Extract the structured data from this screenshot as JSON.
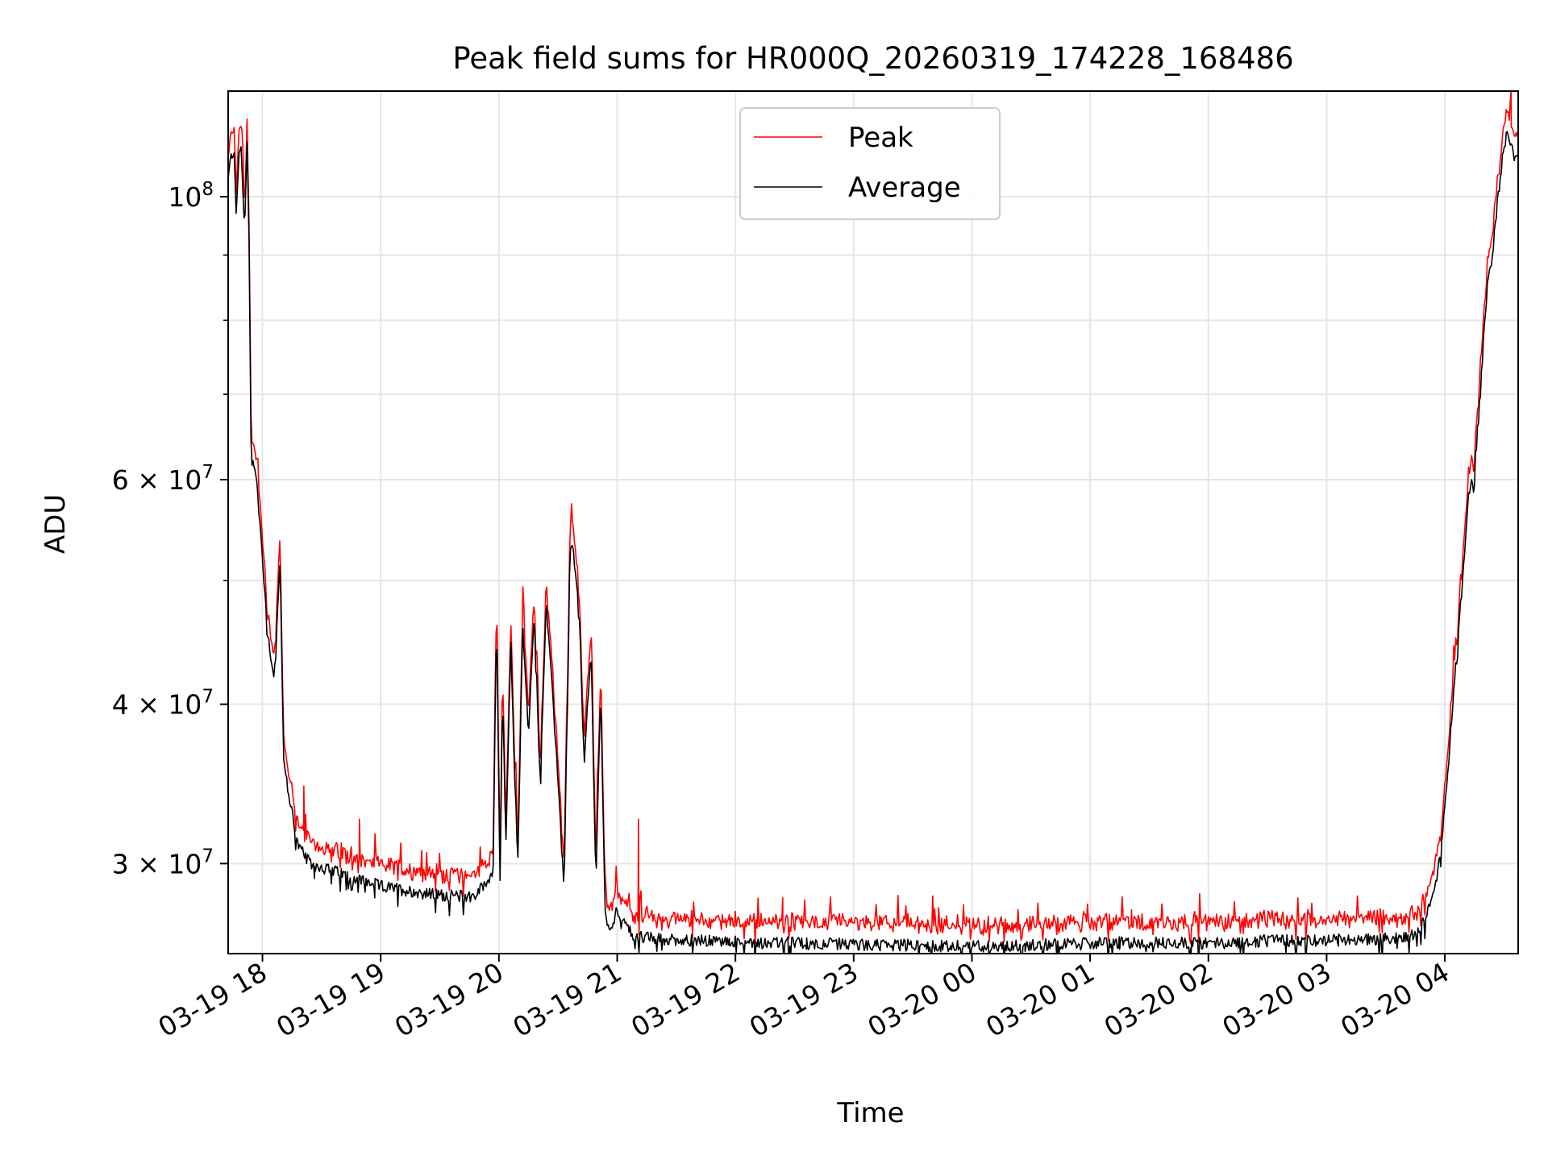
{
  "chart_data": {
    "type": "line",
    "title": "Peak field sums for HR000Q_20260319_174228_168486",
    "xlabel": "Time",
    "ylabel": "ADU",
    "yscale": "log",
    "ylim": [
      25500000,
      121000000
    ],
    "xlim_hours": [
      17.71,
      28.62
    ],
    "grid": true,
    "legend_location": "upper center",
    "x_ticks": [
      {
        "hour": 18,
        "label": "03-19 18"
      },
      {
        "hour": 19,
        "label": "03-19 19"
      },
      {
        "hour": 20,
        "label": "03-19 20"
      },
      {
        "hour": 21,
        "label": "03-19 21"
      },
      {
        "hour": 22,
        "label": "03-19 22"
      },
      {
        "hour": 23,
        "label": "03-19 23"
      },
      {
        "hour": 24,
        "label": "03-20 00"
      },
      {
        "hour": 25,
        "label": "03-20 01"
      },
      {
        "hour": 26,
        "label": "03-20 02"
      },
      {
        "hour": 27,
        "label": "03-20 03"
      },
      {
        "hour": 28,
        "label": "03-20 04"
      }
    ],
    "y_major_ticks": [
      {
        "value": 100000000,
        "base": "10",
        "exp": "8",
        "prefix": ""
      },
      {
        "value": 60000000,
        "base": "10",
        "exp": "7",
        "prefix": "6 × "
      },
      {
        "value": 40000000,
        "base": "10",
        "exp": "7",
        "prefix": "4 × "
      },
      {
        "value": 30000000,
        "base": "10",
        "exp": "7",
        "prefix": "3 × "
      }
    ],
    "y_minor_grid": [
      90000000,
      80000000,
      70000000,
      50000000
    ],
    "series": [
      {
        "name": "Average",
        "color": "#000000",
        "x_hours": [
          17.71,
          17.73,
          17.76,
          17.78,
          17.8,
          17.82,
          17.85,
          17.87,
          17.89,
          17.9,
          17.91,
          17.93,
          17.95,
          18.0,
          18.05,
          18.1,
          18.15,
          18.18,
          18.2,
          18.22,
          18.25,
          18.3,
          18.4,
          18.5,
          18.6,
          18.8,
          19.0,
          19.2,
          19.4,
          19.6,
          19.8,
          19.95,
          19.98,
          20.01,
          20.03,
          20.06,
          20.1,
          20.13,
          20.16,
          20.2,
          20.25,
          20.3,
          20.35,
          20.4,
          20.45,
          20.5,
          20.55,
          20.6,
          20.62,
          20.65,
          20.68,
          20.72,
          20.78,
          20.82,
          20.86,
          20.9,
          20.95,
          21.0,
          21.05,
          21.1,
          21.15,
          21.2,
          21.3,
          21.5,
          21.7,
          21.9,
          22.1,
          22.3,
          22.5,
          22.7,
          22.9,
          23.1,
          23.3,
          23.5,
          23.7,
          23.9,
          24.1,
          24.3,
          24.5,
          24.7,
          24.9,
          25.1,
          25.3,
          25.5,
          25.7,
          25.9,
          26.1,
          26.3,
          26.5,
          26.7,
          26.9,
          27.1,
          27.3,
          27.5,
          27.7,
          27.8,
          27.9,
          27.95,
          28.0,
          28.05,
          28.1,
          28.15,
          28.2,
          28.25,
          28.3,
          28.33,
          28.36,
          28.4,
          28.45,
          28.5,
          28.53,
          28.56,
          28.6,
          28.62
        ],
        "values": [
          103000000,
          107000000,
          109000000,
          96000000,
          108000000,
          109000000,
          94000000,
          111000000,
          88000000,
          66000000,
          62000000,
          62000000,
          60000000,
          52000000,
          45000000,
          42000000,
          52000000,
          36000000,
          35000000,
          34000000,
          33000000,
          31000000,
          30000000,
          29800000,
          29600000,
          29200000,
          28800000,
          28600000,
          28400000,
          28300000,
          28300000,
          29500000,
          47000000,
          28800000,
          41000000,
          31000000,
          45000000,
          36000000,
          30000000,
          46000000,
          38000000,
          47000000,
          35000000,
          48000000,
          41000000,
          35000000,
          28500000,
          52000000,
          54000000,
          50000000,
          47000000,
          36000000,
          44000000,
          29000000,
          41000000,
          27000000,
          26800000,
          27600000,
          27000000,
          26600000,
          26300000,
          26300000,
          26200000,
          26150000,
          26100000,
          26050000,
          26050000,
          26000000,
          26000000,
          25950000,
          25950000,
          25900000,
          25900000,
          25900000,
          25850000,
          25850000,
          25850000,
          25850000,
          25900000,
          25950000,
          25950000,
          26000000,
          26000000,
          26000000,
          26000000,
          26000000,
          26000000,
          26050000,
          26100000,
          26100000,
          26100000,
          26150000,
          26150000,
          26200000,
          26300000,
          26700000,
          28200000,
          30000000,
          33000000,
          38000000,
          44000000,
          50000000,
          58000000,
          61000000,
          70000000,
          78000000,
          85000000,
          90000000,
          100000000,
          110000000,
          112000000,
          110000000,
          108000000,
          107000000
        ],
        "sharp_dips": [
          {
            "hour": 18.44,
            "value": 29200000
          },
          {
            "hour": 18.95,
            "value": 28200000
          },
          {
            "hour": 21.4,
            "value": 25900000
          },
          {
            "hour": 21.95,
            "value": 25900000
          },
          {
            "hour": 22.6,
            "value": 25700000
          },
          {
            "hour": 23.15,
            "value": 25700000
          },
          {
            "hour": 23.8,
            "value": 25600000
          },
          {
            "hour": 24.45,
            "value": 25600000
          },
          {
            "hour": 25.25,
            "value": 25700000
          },
          {
            "hour": 25.85,
            "value": 25750000
          },
          {
            "hour": 26.4,
            "value": 25800000
          },
          {
            "hour": 27.1,
            "value": 25850000
          }
        ]
      },
      {
        "name": "Peak",
        "color": "#ff0000",
        "ratio_to_average": 1.03,
        "spikes": [
          {
            "hour": 18.35,
            "value": 34500000
          },
          {
            "hour": 18.82,
            "value": 32500000
          },
          {
            "hour": 21.18,
            "value": 32500000
          },
          {
            "hour": 22.4,
            "value": 28200000
          },
          {
            "hour": 23.22,
            "value": 27300000
          },
          {
            "hour": 23.95,
            "value": 26800000
          },
          {
            "hour": 25.35,
            "value": 27600000
          },
          {
            "hour": 28.56,
            "value": 121000000
          }
        ]
      }
    ]
  }
}
